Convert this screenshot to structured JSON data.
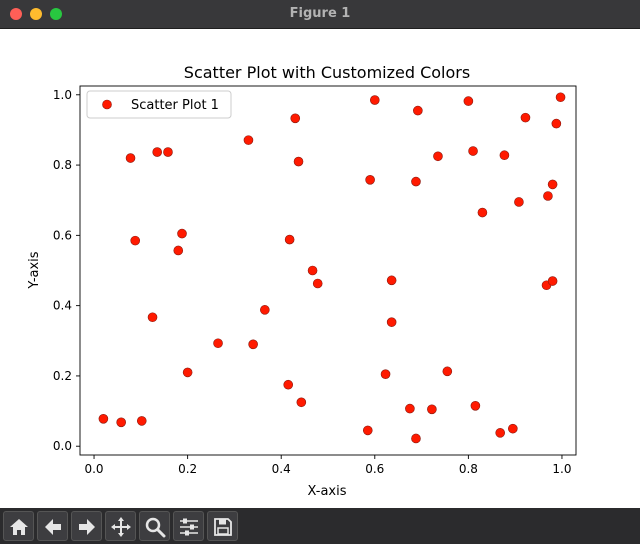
{
  "window": {
    "title": "Figure 1"
  },
  "toolbar": {
    "buttons": [
      {
        "name": "home-icon"
      },
      {
        "name": "back-arrow-icon"
      },
      {
        "name": "forward-arrow-icon"
      },
      {
        "name": "pan-icon"
      },
      {
        "name": "zoom-icon"
      },
      {
        "name": "configure-subplots-icon"
      },
      {
        "name": "save-icon"
      }
    ]
  },
  "chart_data": {
    "type": "scatter",
    "title": "Scatter Plot with Customized Colors",
    "xlabel": "X-axis",
    "ylabel": "Y-axis",
    "xlim": [
      -0.03,
      1.03
    ],
    "ylim": [
      -0.025,
      1.025
    ],
    "x_ticks": [
      "0.0",
      "0.2",
      "0.4",
      "0.6",
      "0.8",
      "1.0"
    ],
    "y_ticks": [
      "0.0",
      "0.2",
      "0.4",
      "0.6",
      "0.8",
      "1.0"
    ],
    "grid": false,
    "legend_position": "top-left",
    "marker_color": "#ff1a00",
    "marker_edge_color": "#8a1a10",
    "series": [
      {
        "name": "Scatter Plot 1",
        "points": [
          [
            0.02,
            0.078
          ],
          [
            0.058,
            0.068
          ],
          [
            0.102,
            0.072
          ],
          [
            0.125,
            0.367
          ],
          [
            0.078,
            0.82
          ],
          [
            0.088,
            0.585
          ],
          [
            0.135,
            0.837
          ],
          [
            0.158,
            0.837
          ],
          [
            0.18,
            0.557
          ],
          [
            0.188,
            0.605
          ],
          [
            0.2,
            0.21
          ],
          [
            0.265,
            0.293
          ],
          [
            0.33,
            0.871
          ],
          [
            0.34,
            0.29
          ],
          [
            0.365,
            0.388
          ],
          [
            0.415,
            0.175
          ],
          [
            0.418,
            0.588
          ],
          [
            0.43,
            0.933
          ],
          [
            0.437,
            0.81
          ],
          [
            0.443,
            0.125
          ],
          [
            0.467,
            0.5
          ],
          [
            0.478,
            0.463
          ],
          [
            0.585,
            0.045
          ],
          [
            0.59,
            0.758
          ],
          [
            0.6,
            0.985
          ],
          [
            0.623,
            0.205
          ],
          [
            0.636,
            0.472
          ],
          [
            0.636,
            0.353
          ],
          [
            0.675,
            0.107
          ],
          [
            0.688,
            0.022
          ],
          [
            0.688,
            0.753
          ],
          [
            0.692,
            0.955
          ],
          [
            0.722,
            0.105
          ],
          [
            0.735,
            0.825
          ],
          [
            0.755,
            0.213
          ],
          [
            0.8,
            0.982
          ],
          [
            0.81,
            0.84
          ],
          [
            0.815,
            0.115
          ],
          [
            0.83,
            0.665
          ],
          [
            0.868,
            0.038
          ],
          [
            0.877,
            0.828
          ],
          [
            0.895,
            0.05
          ],
          [
            0.908,
            0.695
          ],
          [
            0.922,
            0.935
          ],
          [
            0.967,
            0.458
          ],
          [
            0.97,
            0.712
          ],
          [
            0.98,
            0.745
          ],
          [
            0.98,
            0.47
          ],
          [
            0.988,
            0.918
          ],
          [
            0.997,
            0.993
          ]
        ]
      }
    ]
  }
}
